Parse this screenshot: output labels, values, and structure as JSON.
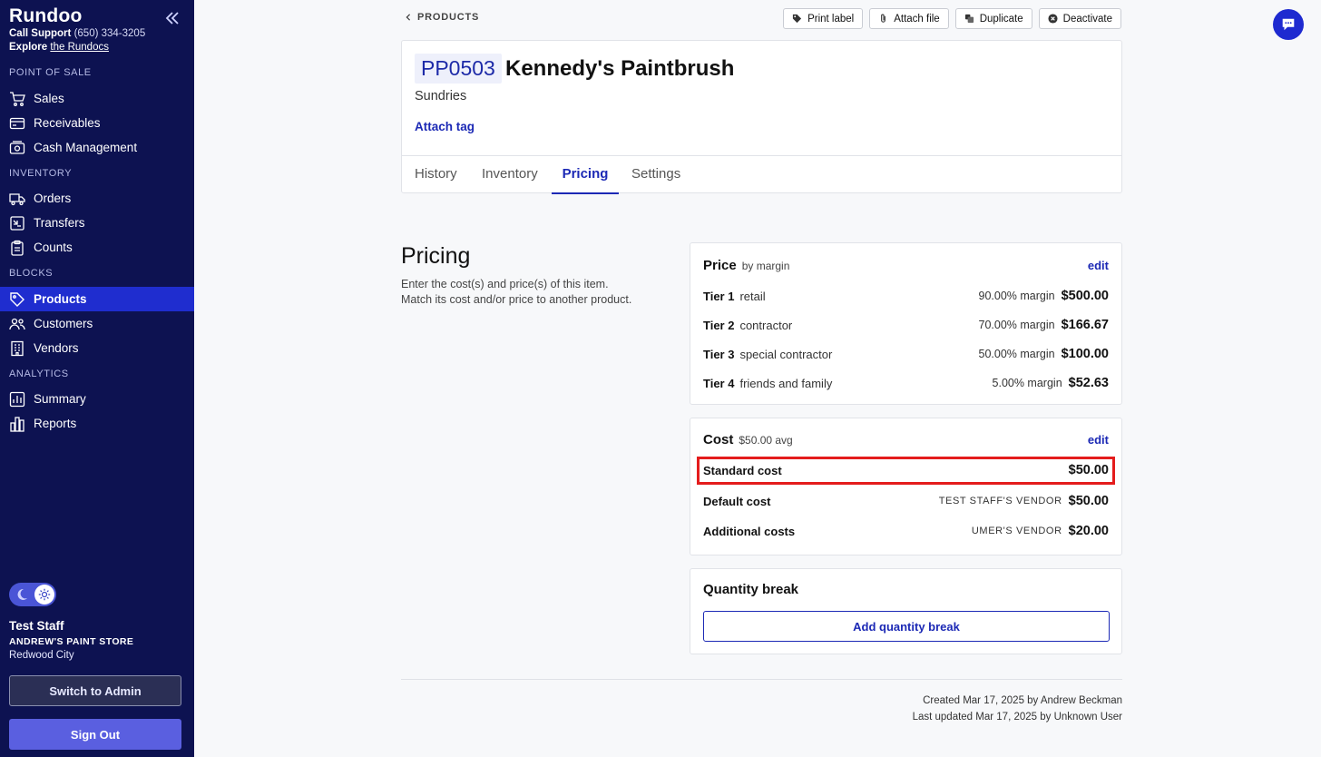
{
  "sidebar": {
    "brand": "Rundoo",
    "support_prefix": "Call Support",
    "support_phone": "(650) 334-3205",
    "explore_prefix": "Explore",
    "explore_link": "the Rundocs",
    "sections": {
      "pos": "POINT OF SALE",
      "inventory": "INVENTORY",
      "blocks": "BLOCKS",
      "analytics": "ANALYTICS"
    },
    "items": {
      "sales": "Sales",
      "receivables": "Receivables",
      "cash": "Cash Management",
      "orders": "Orders",
      "transfers": "Transfers",
      "counts": "Counts",
      "products": "Products",
      "customers": "Customers",
      "vendors": "Vendors",
      "summary": "Summary",
      "reports": "Reports"
    },
    "active_item": "Products",
    "user": {
      "name": "Test Staff",
      "store": "ANDREW'S PAINT STORE",
      "city": "Redwood City"
    },
    "switch_admin": "Switch to Admin",
    "sign_out": "Sign Out"
  },
  "breadcrumb": "PRODUCTS",
  "toolbar": {
    "print_label": "Print label",
    "attach_file": "Attach file",
    "duplicate": "Duplicate",
    "deactivate": "Deactivate"
  },
  "product": {
    "sku": "PP0503",
    "name": "Kennedy's Paintbrush",
    "category": "Sundries",
    "attach_tag": "Attach tag"
  },
  "tabs": [
    "History",
    "Inventory",
    "Pricing",
    "Settings"
  ],
  "active_tab": "Pricing",
  "pricing": {
    "title": "Pricing",
    "desc_line1": "Enter the cost(s) and price(s) of this item.",
    "desc_line2": "Match its cost and/or price to another product."
  },
  "price_card": {
    "title": "Price",
    "subtitle": "by margin",
    "edit": "edit",
    "tiers": [
      {
        "tier": "Tier 1",
        "name": "retail",
        "margin": "90.00% margin",
        "price": "$500.00"
      },
      {
        "tier": "Tier 2",
        "name": "contractor",
        "margin": "70.00% margin",
        "price": "$166.67"
      },
      {
        "tier": "Tier 3",
        "name": "special contractor",
        "margin": "50.00% margin",
        "price": "$100.00"
      },
      {
        "tier": "Tier 4",
        "name": "friends and family",
        "margin": "5.00% margin",
        "price": "$52.63"
      }
    ]
  },
  "cost_card": {
    "title": "Cost",
    "subtitle": "$50.00 avg",
    "edit": "edit",
    "standard": {
      "label": "Standard cost",
      "value": "$50.00"
    },
    "default": {
      "label": "Default cost",
      "vendor": "TEST STAFF'S VENDOR",
      "value": "$50.00"
    },
    "additional": {
      "label": "Additional costs",
      "vendor": "UMER'S VENDOR",
      "value": "$20.00"
    }
  },
  "qty_card": {
    "title": "Quantity break",
    "button": "Add quantity break"
  },
  "footer": {
    "created": "Created Mar 17, 2025 by Andrew Beckman",
    "updated": "Last updated Mar 17, 2025 by Unknown User"
  },
  "colors": {
    "sidebar_bg": "#0d1251",
    "active_nav": "#1f2dcf",
    "accent": "#1c29b5",
    "highlight": "#e41c1c"
  }
}
